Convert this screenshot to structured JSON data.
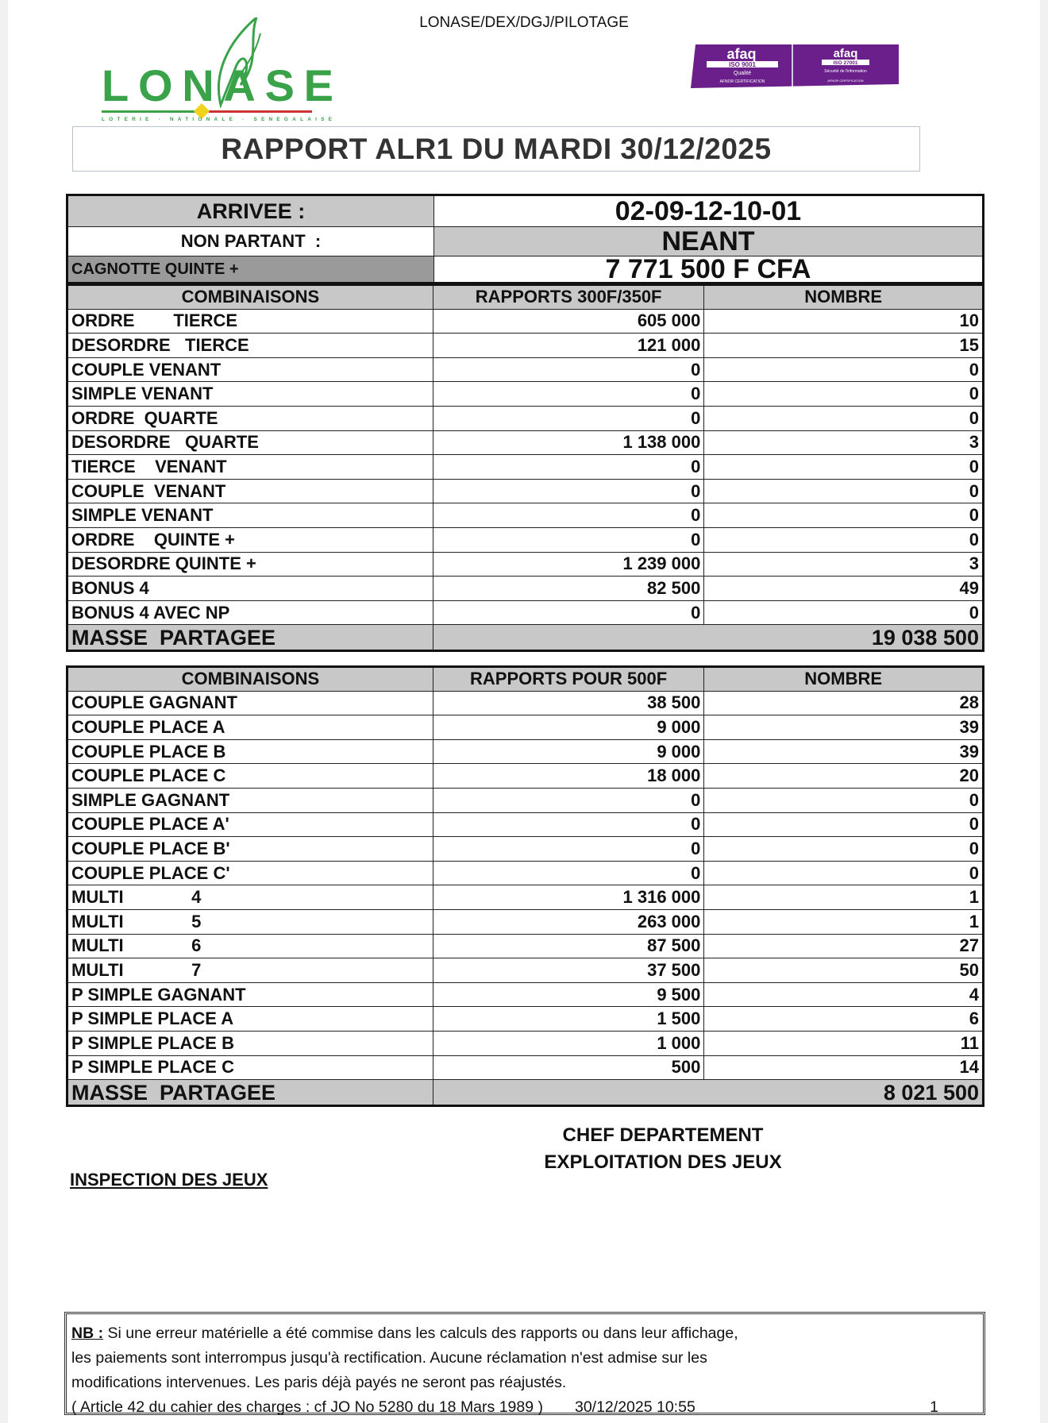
{
  "header": {
    "reference": "LONASE/DEX/DGJ/PILOTAGE",
    "logo_text": "LONASE",
    "logo_tagline": "LOTERIE · NATIONALE · SENEGALAISE",
    "cert_1": "afaq ISO 9001 Qualité AFNOR CERTIFICATION",
    "cert_2": "afaq ISO 27001 Sécurité de l'information AFNOR CERTIFICATION",
    "brand_color": "#3aa34a",
    "cert_color": "#6a1f8a"
  },
  "title": "RAPPORT ALR1 DU MARDI 30/12/2025",
  "summary": {
    "arrivee_label": "ARRIVEE :",
    "arrivee": "02-09-12-10-01",
    "non_partant_label": "NON PARTANT  :",
    "non_partant": "NEANT",
    "cagnotte_label": "CAGNOTTE QUINTE +",
    "cagnotte": "7 771 500 F CFA"
  },
  "table1": {
    "headers": [
      "COMBINAISONS",
      "RAPPORTS 300F/350F",
      "NOMBRE"
    ],
    "rows": [
      [
        "ORDRE        TIERCE",
        "605 000",
        "10"
      ],
      [
        "DESORDRE   TIERCE",
        "121 000",
        "15"
      ],
      [
        "COUPLE VENANT",
        "0",
        "0"
      ],
      [
        "SIMPLE VENANT",
        "0",
        "0"
      ],
      [
        "ORDRE  QUARTE",
        "0",
        "0"
      ],
      [
        "DESORDRE   QUARTE",
        "1 138 000",
        "3"
      ],
      [
        "TIERCE    VENANT",
        "0",
        "0"
      ],
      [
        "COUPLE  VENANT",
        "0",
        "0"
      ],
      [
        "SIMPLE VENANT",
        "0",
        "0"
      ],
      [
        "ORDRE    QUINTE +",
        "0",
        "0"
      ],
      [
        "DESORDRE QUINTE +",
        "1 239 000",
        "3"
      ],
      [
        "BONUS 4",
        "82 500",
        "49"
      ],
      [
        "BONUS 4 AVEC NP",
        "0",
        "0"
      ]
    ],
    "masse_label": "MASSE  PARTAGEE",
    "masse": "19 038 500"
  },
  "table2": {
    "headers": [
      "COMBINAISONS",
      "RAPPORTS POUR 500F",
      "NOMBRE"
    ],
    "rows": [
      [
        "COUPLE GAGNANT",
        "38 500",
        "28"
      ],
      [
        "COUPLE PLACE A",
        "9 000",
        "39"
      ],
      [
        "COUPLE PLACE B",
        "9 000",
        "39"
      ],
      [
        "COUPLE PLACE C",
        "18 000",
        "20"
      ],
      [
        "SIMPLE GAGNANT",
        "0",
        "0"
      ],
      [
        "COUPLE PLACE A'",
        "0",
        "0"
      ],
      [
        "COUPLE PLACE B'",
        "0",
        "0"
      ],
      [
        "COUPLE PLACE C'",
        "0",
        "0"
      ],
      [
        "MULTI              4",
        "1 316 000",
        "1"
      ],
      [
        "MULTI              5",
        "263 000",
        "1"
      ],
      [
        "MULTI              6",
        "87 500",
        "27"
      ],
      [
        "MULTI              7",
        "37 500",
        "50"
      ],
      [
        "P SIMPLE GAGNANT",
        "9 500",
        "4"
      ],
      [
        "P SIMPLE PLACE A",
        "1 500",
        "6"
      ],
      [
        "P SIMPLE PLACE B",
        "1 000",
        "11"
      ],
      [
        "P SIMPLE PLACE C",
        "500",
        "14"
      ]
    ],
    "masse_label": "MASSE  PARTAGEE",
    "masse": "8 021 500"
  },
  "signatures": {
    "chef_line1": "CHEF DEPARTEMENT",
    "chef_line2": "EXPLOITATION DES JEUX",
    "inspection": "INSPECTION DES JEUX"
  },
  "footer": {
    "nb_label": "NB :",
    "line1": " Si une erreur matérielle a été commise dans les calculs des rapports ou dans leur affichage,",
    "line2": "les paiements sont interrompus jusqu'à rectification. Aucune réclamation n'est admise sur les",
    "line3": "modifications intervenues. Les paris déjà payés ne seront pas réajustés.",
    "line4": "( Article 42 du cahier des charges : cf JO No 5280 du 18 Mars 1989 )",
    "timestamp": "30/12/2025 10:55",
    "page": "1"
  }
}
